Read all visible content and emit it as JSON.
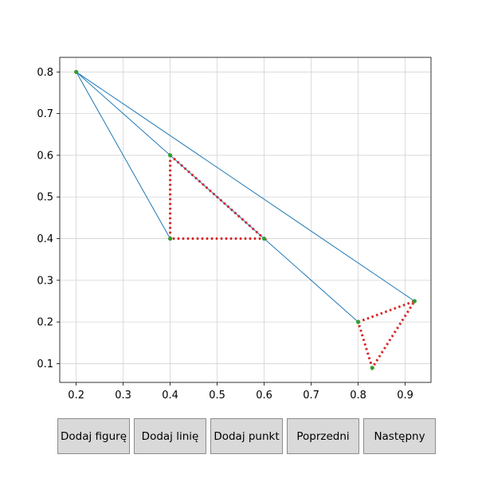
{
  "chart_data": {
    "type": "line",
    "xlim": [
      0.165,
      0.955
    ],
    "ylim": [
      0.055,
      0.835
    ],
    "xticks": [
      0.2,
      0.3,
      0.4,
      0.5,
      0.6,
      0.7,
      0.8,
      0.9
    ],
    "yticks": [
      0.1,
      0.2,
      0.3,
      0.4,
      0.5,
      0.6,
      0.7,
      0.8
    ],
    "xtick_labels": [
      "0.2",
      "0.3",
      "0.4",
      "0.5",
      "0.6",
      "0.7",
      "0.8",
      "0.9"
    ],
    "ytick_labels": [
      "0.1",
      "0.2",
      "0.3",
      "0.4",
      "0.5",
      "0.6",
      "0.7",
      "0.8"
    ],
    "grid": true,
    "points": [
      [
        0.2,
        0.8
      ],
      [
        0.4,
        0.6
      ],
      [
        0.4,
        0.4
      ],
      [
        0.6,
        0.4
      ],
      [
        0.8,
        0.2
      ],
      [
        0.92,
        0.25
      ],
      [
        0.83,
        0.09
      ]
    ],
    "lines": [
      [
        [
          0.2,
          0.8
        ],
        [
          0.6,
          0.4
        ]
      ],
      [
        [
          0.2,
          0.8
        ],
        [
          0.4,
          0.4
        ]
      ],
      [
        [
          0.6,
          0.4
        ],
        [
          0.8,
          0.2
        ]
      ],
      [
        [
          0.2,
          0.8
        ],
        [
          0.92,
          0.25
        ]
      ]
    ],
    "figures": [
      [
        [
          0.4,
          0.6
        ],
        [
          0.6,
          0.4
        ],
        [
          0.4,
          0.4
        ]
      ],
      [
        [
          0.8,
          0.2
        ],
        [
          0.92,
          0.25
        ],
        [
          0.83,
          0.09
        ]
      ]
    ],
    "colors": {
      "line": "#1f77b4",
      "figure": "#d62728",
      "point": "#2ca02c",
      "grid": "#d3d3d3"
    }
  },
  "buttons": {
    "add_figure": "Dodaj figurę",
    "add_line": "Dodaj linię",
    "add_point": "Dodaj punkt",
    "previous": "Poprzedni",
    "next": "Następny"
  }
}
